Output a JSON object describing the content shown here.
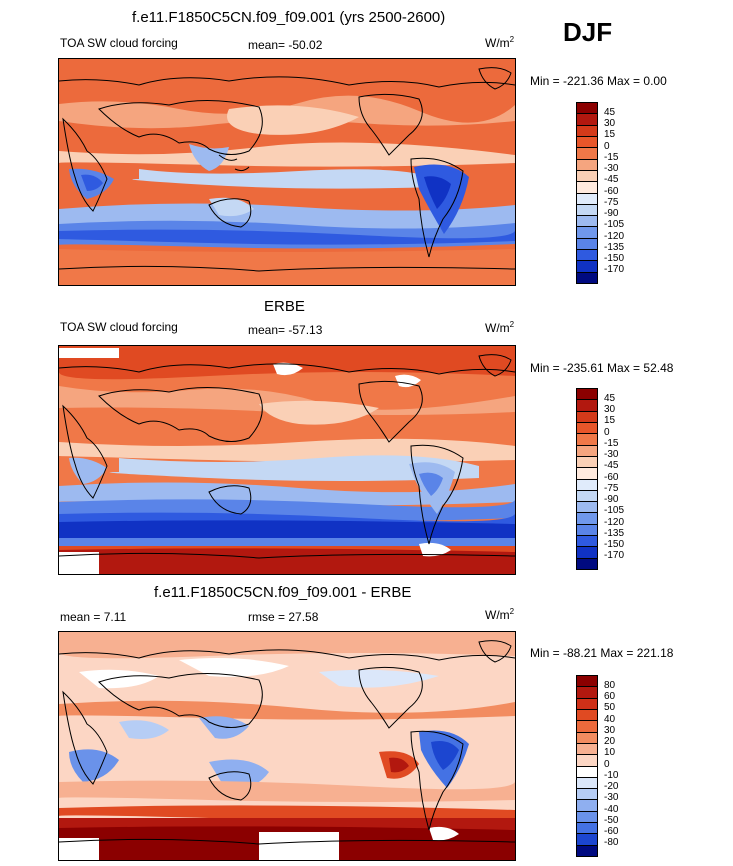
{
  "season": "DJF",
  "units_display": "W/m",
  "units_sup": "2",
  "colors": {
    "deep_red": "#a8140c",
    "red": "#e8562a",
    "orange": "#f07848",
    "salmon": "#f5a57f",
    "peach": "#fad0b6",
    "white": "#ffffff",
    "light_blue": "#c4d8f4",
    "sky": "#9dbaf0",
    "blue": "#5a84e8",
    "mid_blue": "#2f5ae0",
    "dark_blue": "#1032c4",
    "navy": "#000a80"
  },
  "panel1": {
    "title": "f.e11.F1850C5CN.f09_f09.001 (yrs 2500-2600)",
    "left_label": "TOA SW cloud forcing",
    "mean_label": "mean= -50.02",
    "minmax": "Min = -221.36 Max =   0.00",
    "colorbar_ticks": [
      "45",
      "30",
      "15",
      "0",
      "-15",
      "-30",
      "-45",
      "-60",
      "-75",
      "-90",
      "-105",
      "-120",
      "-135",
      "-150",
      "-170"
    ],
    "colorbar_colors": [
      "#8b0000",
      "#b2180f",
      "#d43a1a",
      "#e8562a",
      "#f07848",
      "#f5a57f",
      "#fad0b6",
      "#ffeade",
      "#e0ebfb",
      "#c4d8f4",
      "#9dbaf0",
      "#7098ec",
      "#5a84e8",
      "#2f5ae0",
      "#1032c4",
      "#000a80"
    ]
  },
  "panel2": {
    "title": "ERBE",
    "left_label": "TOA SW cloud forcing",
    "mean_label": "mean= -57.13",
    "minmax": "Min = -235.61 Max =  52.48",
    "colorbar_ticks": [
      "45",
      "30",
      "15",
      "0",
      "-15",
      "-30",
      "-45",
      "-60",
      "-75",
      "-90",
      "-105",
      "-120",
      "-135",
      "-150",
      "-170"
    ],
    "colorbar_colors": [
      "#8b0000",
      "#b2180f",
      "#d43a1a",
      "#e8562a",
      "#f07848",
      "#f5a57f",
      "#fad0b6",
      "#ffeade",
      "#e0ebfb",
      "#c4d8f4",
      "#9dbaf0",
      "#7098ec",
      "#5a84e8",
      "#2f5ae0",
      "#1032c4",
      "#000a80"
    ]
  },
  "panel3": {
    "title": "f.e11.F1850C5CN.f09_f09.001 - ERBE",
    "mean_label": "mean =   7.11",
    "rmse_label": "rmse =  27.58",
    "minmax": "Min = -88.21 Max = 221.18",
    "colorbar_ticks": [
      "80",
      "60",
      "50",
      "40",
      "30",
      "20",
      "10",
      "0",
      "-10",
      "-20",
      "-30",
      "-40",
      "-50",
      "-60",
      "-80"
    ],
    "colorbar_colors": [
      "#8b0000",
      "#b2180f",
      "#cf3018",
      "#e04a22",
      "#ec6a3c",
      "#f28c60",
      "#f7b091",
      "#fcd6c4",
      "#ffffff",
      "#dbe7fa",
      "#b6cdf5",
      "#8faff0",
      "#6a92ea",
      "#4472e4",
      "#1c46d0",
      "#000a80"
    ]
  }
}
